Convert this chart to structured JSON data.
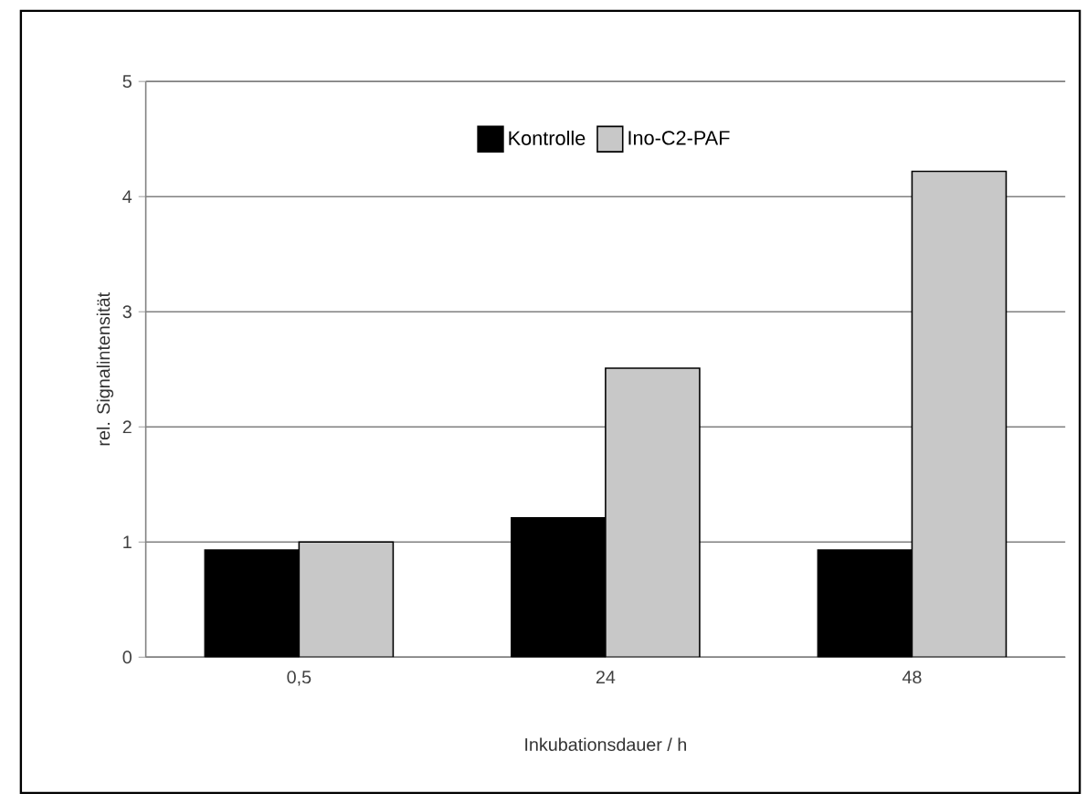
{
  "chart_data": {
    "type": "bar",
    "xlabel": "Inkubationsdauer / h",
    "ylabel": "rel. Signalintensität",
    "categories": [
      "0,5",
      "24",
      "48"
    ],
    "series": [
      {
        "name": "Kontrolle",
        "color": "#000000",
        "values": [
          0.93,
          1.21,
          0.93
        ]
      },
      {
        "name": "Ino-C2-PAF",
        "color": "#c8c8c8",
        "values": [
          1.0,
          2.51,
          4.22
        ]
      }
    ],
    "ylim": [
      0,
      5
    ],
    "yticks": [
      0,
      1,
      2,
      3,
      4,
      5
    ],
    "grid": "y",
    "legend": "top"
  }
}
